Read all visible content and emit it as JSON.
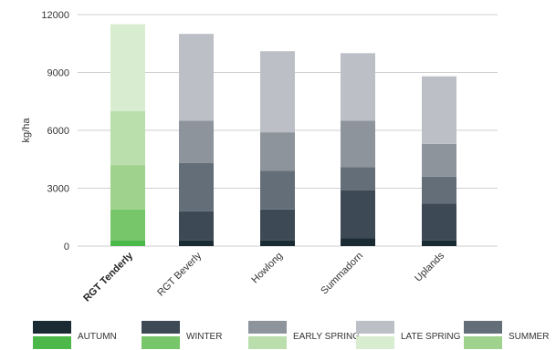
{
  "chart_data": {
    "type": "bar",
    "stacked": true,
    "title": "",
    "xlabel": "",
    "ylabel": "kg/ha",
    "ylim": [
      0,
      12000
    ],
    "yticks": [
      0,
      3000,
      6000,
      9000,
      12000
    ],
    "ytick_labels": [
      "0",
      "3000",
      "6000",
      "9000",
      "12000"
    ],
    "grid": true,
    "legend_position": "bottom",
    "categories": [
      "RGT Tenderly",
      "RGT Beverly",
      "Howlong",
      "Summadorn",
      "Uplands"
    ],
    "highlight_category": "RGT Tenderly",
    "series": [
      {
        "name": "AUTUMN",
        "values": [
          300,
          300,
          300,
          400,
          300
        ]
      },
      {
        "name": "WINTER",
        "values": [
          1600,
          1500,
          1600,
          2500,
          1900
        ]
      },
      {
        "name": "SUMMER",
        "values": [
          2300,
          2500,
          2000,
          1200,
          1400
        ]
      },
      {
        "name": "EARLY SPRING",
        "values": [
          2800,
          2200,
          2000,
          2400,
          1700
        ]
      },
      {
        "name": "LATE SPRING",
        "values": [
          4500,
          4500,
          4200,
          3500,
          3500
        ]
      }
    ],
    "colors": {
      "AUTUMN": "#1b2b34",
      "WINTER": "#3d4a56",
      "SUMMER": "#636e79",
      "EARLY SPRING": "#8e949c",
      "LATE SPRING": "#bcbfc6"
    },
    "highlight_colors": {
      "AUTUMN": "#4cb84a",
      "WINTER": "#78c66a",
      "SUMMER": "#9ed28d",
      "EARLY SPRING": "#badfac",
      "LATE SPRING": "#d8ecd0"
    },
    "legend_order": [
      "AUTUMN",
      "WINTER",
      "EARLY SPRING",
      "LATE SPRING",
      "SUMMER"
    ]
  }
}
